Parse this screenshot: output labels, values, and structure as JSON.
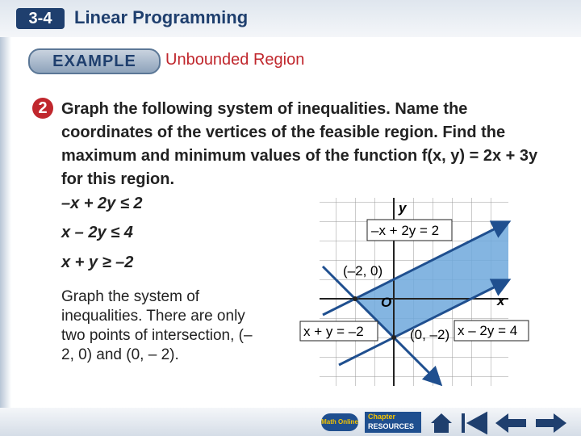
{
  "header": {
    "lesson": "3-4",
    "title": "Linear Programming"
  },
  "example": {
    "badge": "EXAMPLE",
    "title": "Unbounded Region"
  },
  "problem": {
    "number": "2",
    "text": "Graph the following system of inequalities. Name the coordinates of the vertices of the feasible region. Find the maximum and minimum values of the function f(x, y) = 2x + 3y for this region.",
    "inequalities": [
      "–x + 2y ≤ 2",
      "x – 2y ≤ 4",
      "x + y ≥ –2"
    ],
    "explanation": "Graph the system of inequalities. There are only two points of intersection, (– 2, 0) and (0, – 2)."
  },
  "graph": {
    "labels": {
      "y_axis": "y",
      "x_axis": "x",
      "origin": "O",
      "line1": "–x + 2y = 2",
      "line2": "x + y = –2",
      "line3": "x – 2y = 4",
      "vertex1": "(–2, 0)",
      "vertex2": "(0, –2)"
    }
  },
  "footer": {
    "math_online": "Math Online",
    "chapter": "Chapter",
    "resources": "RESOURCES"
  }
}
